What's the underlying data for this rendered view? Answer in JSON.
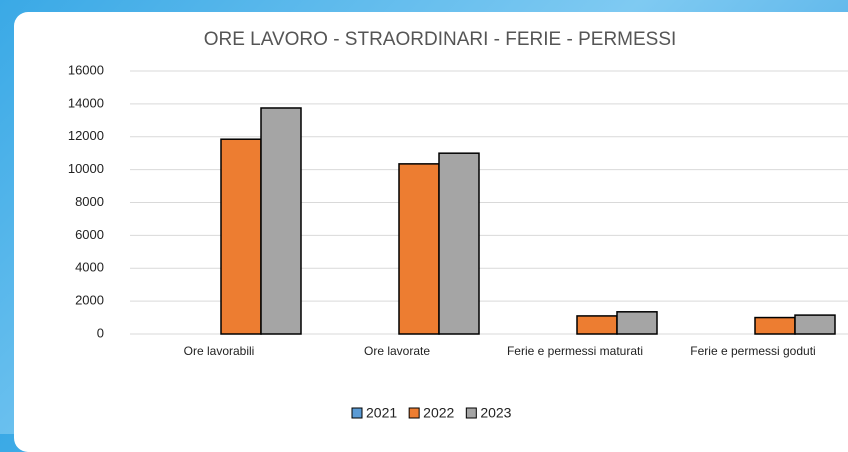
{
  "chart_data": {
    "type": "bar",
    "title": "ORE LAVORO - STRAORDINARI - FERIE - PERMESSI",
    "categories": [
      "Ore lavorabili",
      "Ore lavorate",
      "Ferie e permessi maturati",
      "Ferie e permessi goduti"
    ],
    "series": [
      {
        "name": "2021",
        "color": "#5b9bd5",
        "values": [
          0,
          0,
          0,
          0
        ]
      },
      {
        "name": "2022",
        "color": "#ed7d31",
        "values": [
          11850,
          10350,
          1100,
          1000
        ]
      },
      {
        "name": "2023",
        "color": "#a5a5a5",
        "values": [
          13750,
          11000,
          1350,
          1150
        ]
      }
    ],
    "ylim": [
      0,
      16000
    ],
    "yticks": [
      0,
      2000,
      4000,
      6000,
      8000,
      10000,
      12000,
      14000,
      16000
    ],
    "grid": true
  }
}
